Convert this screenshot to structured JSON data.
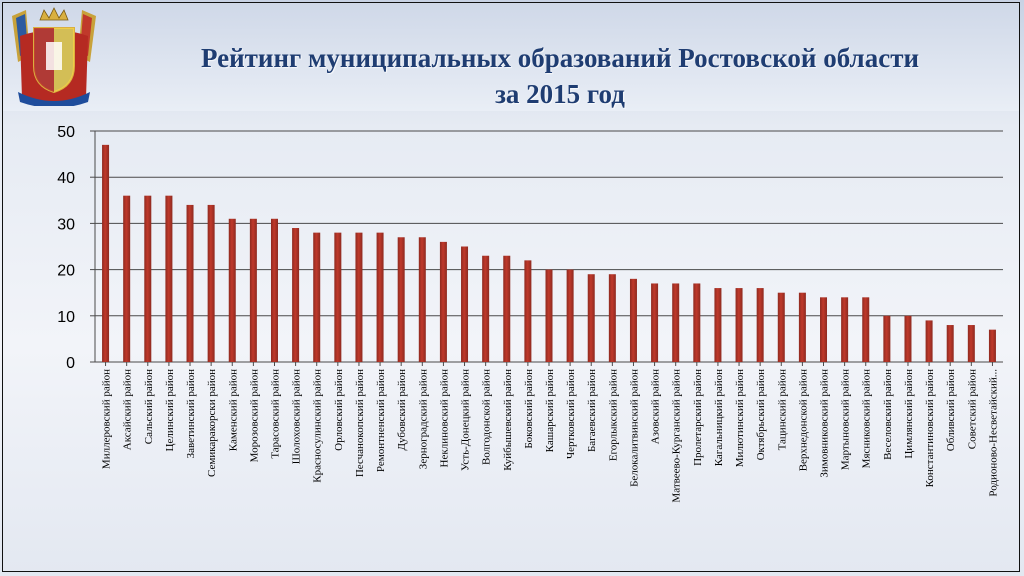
{
  "slide": {
    "title_line1": "Рейтинг муниципальных образований Ростовской области",
    "title_line2": "за 2015 год"
  },
  "emblem": {
    "icon": "rostov-oblast-coat-of-arms-icon"
  },
  "colors": {
    "bar": "#c0392b",
    "bar_dark": "#8e2a20",
    "grid": "#4a4a4a",
    "title": "#1f3d72"
  },
  "chart_data": {
    "type": "bar",
    "title": "",
    "xlabel": "",
    "ylabel": "",
    "ylim": [
      0,
      50
    ],
    "yticks": [
      0,
      10,
      20,
      30,
      40,
      50
    ],
    "grid": true,
    "categories": [
      "Миллеровский район",
      "Аксайский район",
      "Сальский район",
      "Целинский район",
      "Заветинский район",
      "Семикаракорски район",
      "Каменский район",
      "Морозовский район",
      "Тарасовский район",
      "Шолоховский район",
      "Красносулинский район",
      "Орловский район",
      "Песчанокопский район",
      "Ремонтненский район",
      "Дубовский район",
      "Зерноградский район",
      "Неклиновский район",
      "Усть-Донецкий район",
      "Волгодонской район",
      "Куйбышевский район",
      "Боковский район",
      "Кашарский район",
      "Чертковский район",
      "Багаевский район",
      "Егорлыкский район",
      "Белокалитвинский район",
      "Азовский район",
      "Матвеево-Курганский район",
      "Пролетарский район",
      "Кагальницкий район",
      "Милютинский район",
      "Октябрьский район",
      "Тацинский район",
      "Верхнедонской район",
      "Зимовниковский район",
      "Мартыновский район",
      "Мясниковский район",
      "Веселовский район",
      "Цимлянский район",
      "Константиновский район",
      "Обливский район",
      "Советский район",
      "Родионово-Несветайский..."
    ],
    "values": [
      47,
      36,
      36,
      36,
      34,
      34,
      31,
      31,
      31,
      29,
      28,
      28,
      28,
      28,
      27,
      27,
      26,
      25,
      23,
      23,
      22,
      20,
      20,
      19,
      19,
      18,
      17,
      17,
      17,
      16,
      16,
      16,
      15,
      15,
      14,
      14,
      14,
      10,
      10,
      9,
      8,
      8,
      7
    ]
  }
}
